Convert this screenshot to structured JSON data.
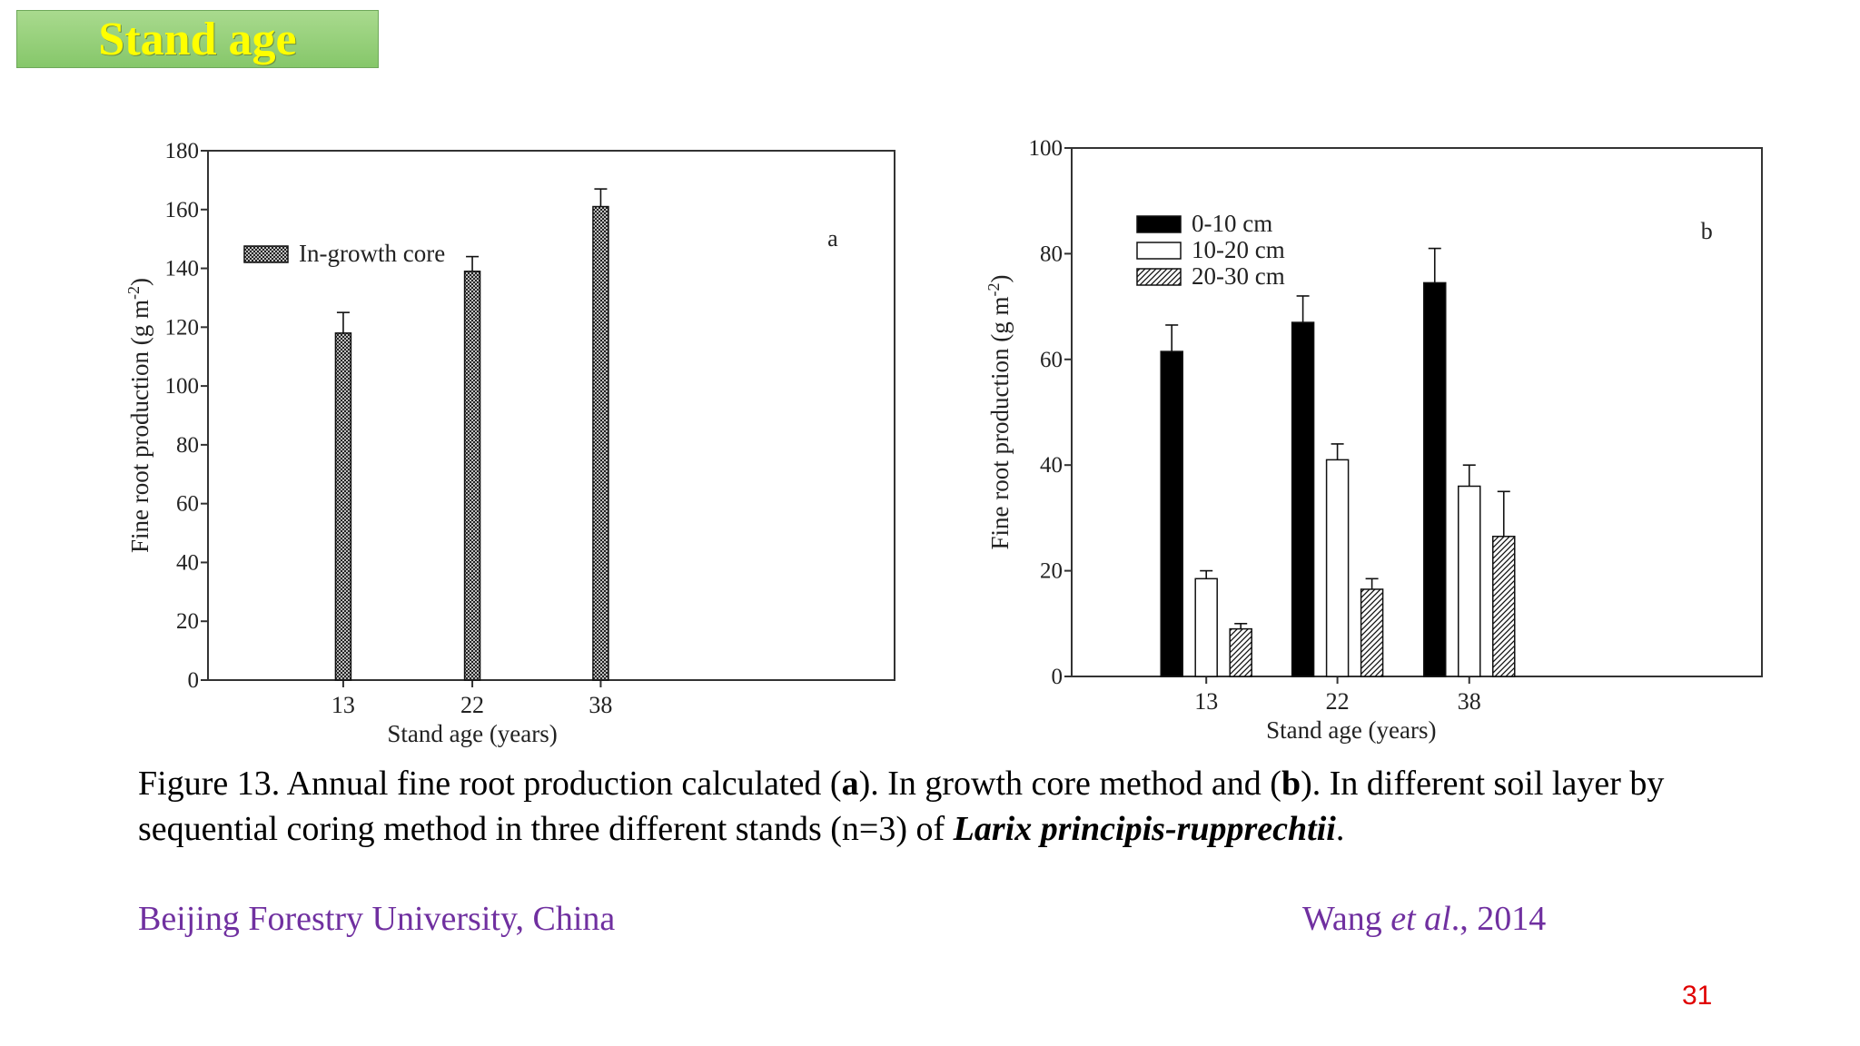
{
  "slide": {
    "title": "Stand age",
    "caption": {
      "prefix": "Figure 13. Annual fine root production calculated (",
      "a_label": "a",
      "mid1": "). In growth core method and (",
      "b_label": "b",
      "mid2": "). In different soil layer by sequential coring method in three different stands (n=3) of ",
      "species": "Larix principis-rupprechtii",
      "suffix": "."
    },
    "footer_left": "Beijing Forestry University, China",
    "footer_right_author": "Wang ",
    "footer_right_etal": "et al",
    "footer_right_year": "., 2014",
    "page_number": "31"
  },
  "colors": {
    "title_text": "#ffff00",
    "title_bg": "#92cc76",
    "footer_text": "#7030a0",
    "page_number": "#e00000"
  },
  "chart_data": [
    {
      "type": "bar",
      "panel_label": "a",
      "categories": [
        "13",
        "22",
        "38"
      ],
      "series": [
        {
          "name": "In-growth core",
          "pattern": "crosshatch",
          "values": [
            118,
            139,
            161
          ],
          "errors": [
            7,
            5,
            6
          ]
        }
      ],
      "ylim": [
        0,
        180
      ],
      "yticks": [
        0,
        20,
        40,
        60,
        80,
        100,
        120,
        140,
        160,
        180
      ],
      "xlabel": "Stand age (years)",
      "ylabel_main": "Fine root production (g m",
      "ylabel_sup": "-2",
      "ylabel_end": ")",
      "legend_position": "top-left"
    },
    {
      "type": "bar",
      "panel_label": "b",
      "categories": [
        "13",
        "22",
        "38"
      ],
      "series": [
        {
          "name": "0-10 cm",
          "pattern": "solid",
          "values": [
            61.5,
            67,
            74.5
          ],
          "errors": [
            5,
            5,
            6.5
          ]
        },
        {
          "name": "10-20 cm",
          "pattern": "open",
          "values": [
            18.5,
            41,
            36
          ],
          "errors": [
            1.5,
            3,
            4
          ]
        },
        {
          "name": "20-30 cm",
          "pattern": "hatch",
          "values": [
            9,
            16.5,
            26.5
          ],
          "errors": [
            1,
            2,
            8.5
          ]
        }
      ],
      "ylim": [
        0,
        100
      ],
      "yticks": [
        0,
        20,
        40,
        60,
        80,
        100
      ],
      "xlabel": "Stand age (years)",
      "ylabel_main": "Fine root production (g m",
      "ylabel_sup": "-2",
      "ylabel_end": ")",
      "legend_position": "top-left"
    }
  ]
}
